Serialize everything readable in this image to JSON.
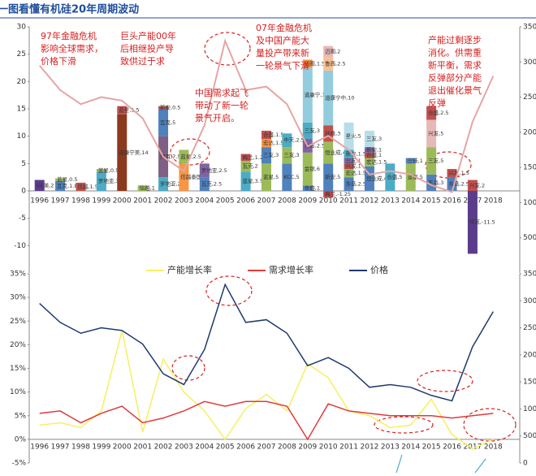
{
  "title": "一图看懂有机硅20年周期波动",
  "chart_data": [
    {
      "type": "stacked-bar",
      "categories": [
        "1996",
        "1997",
        "1998",
        "1999",
        "2000",
        "2001",
        "2002",
        "2003",
        "2004",
        "2005",
        "2006",
        "2007",
        "2008",
        "2009",
        "2010",
        "2011",
        "2012",
        "2013",
        "2014",
        "2015",
        "2016",
        "2017",
        "2018"
      ],
      "ylim": [
        -15,
        30
      ],
      "yticks": [
        -10,
        -5,
        0,
        5,
        10,
        15,
        20,
        25,
        30
      ],
      "y2lim": [
        0,
        35000
      ],
      "y2ticks": [
        5000,
        10000,
        15000,
        20000,
        25000,
        30000,
        35000
      ],
      "segments": [
        [
          {
            "value": 2,
            "value_label": "GE美,2",
            "color": "#5b3c8c"
          }
        ],
        [
          {
            "value": 1.8,
            "value_label": "瓦克,1.8",
            "color": "#4f81bd"
          },
          {
            "value": 0.5,
            "value_label": "蓝星,0.5",
            "color": "#9bbb59"
          }
        ],
        [
          {
            "value": 1.5,
            "value_label": "信越,1.5",
            "color": "#c0504d"
          }
        ],
        [
          {
            "value": 3.5,
            "value_label": "罗地亚,3.5",
            "color": "#4bacc6"
          },
          {
            "value": 0.5,
            "value_label": "蓝星,0.5",
            "color": "#9bbb59"
          }
        ],
        [
          {
            "value": 14,
            "value_label": "道康宁美,14",
            "color": "#8b3a1e"
          },
          {
            "value": 1.5,
            "value_label": "蓝星,1.5",
            "color": "#c0504d"
          }
        ],
        [
          {
            "value": 1,
            "value_label": "信越,1",
            "color": "#9bbb59"
          }
        ],
        [
          {
            "value": 2.5,
            "value_label": "罗地亚,2.5",
            "color": "#4bacc6"
          },
          {
            "value": 7.5,
            "value_label": "拜耳,7.5",
            "color": "#7f6084"
          },
          {
            "value": 5,
            "value_label": "瓦克,5",
            "color": "#4f81bd"
          },
          {
            "value": 0.5,
            "value_label": "新安,0.5",
            "color": "#c0504d"
          }
        ],
        [
          {
            "value": 5,
            "value_label": "信越泰国,5",
            "color": "#f79646"
          },
          {
            "value": 2.5,
            "value_label": "蓝星,2.5",
            "color": "#9bbb59"
          }
        ],
        [
          {
            "value": 2.5,
            "value_label": "瓦克,2.5",
            "color": "#4f81bd"
          },
          {
            "value": 2.5,
            "value_label": "罗地亚,2.5",
            "color": "#8064a2"
          }
        ],
        [],
        [
          {
            "value": 3.5,
            "value_label": "蓝星,3.5",
            "color": "#4bacc6"
          },
          {
            "value": 2,
            "value_label": "瓦克,2",
            "color": "#9bbb59"
          },
          {
            "value": 1.25,
            "value_label": "梅兰,1.25",
            "color": "#c0504d"
          }
        ],
        [
          {
            "value": 5,
            "value_label": "蓝星,5",
            "color": "#9bbb59"
          },
          {
            "value": 3,
            "value_label": "三友,3",
            "color": "#4f81bd"
          },
          {
            "value": 1.5,
            "value_label": "宏达,1.5",
            "color": "#f79646"
          },
          {
            "value": 1.5,
            "value_label": "合盛,1.5",
            "color": "#c0504d"
          }
        ],
        [
          {
            "value": 5,
            "value_label": "KCC,5",
            "color": "#4f81bd"
          },
          {
            "value": 3,
            "value_label": "三友,3",
            "color": "#9bbb59"
          },
          {
            "value": 2.5,
            "value_label": "中天,2.5",
            "color": "#4bacc6"
          }
        ],
        [
          {
            "value": 1,
            "value_label": "合盛,1",
            "color": "#4f81bd"
          },
          {
            "value": 6,
            "value_label": "金银,6",
            "color": "#9bbb59"
          },
          {
            "value": 2.5,
            "value_label": "东岳,2.5",
            "color": "#8064a2"
          },
          {
            "value": 3,
            "value_label": "三友,3",
            "color": "#4bacc6"
          },
          {
            "value": 10,
            "value_label": "道康宁,10",
            "color": "#93cddd"
          },
          {
            "value": 1.5,
            "value_label": "迈图,1.5",
            "color": "#f79646"
          }
        ],
        [
          {
            "value": 5,
            "value_label": "新安,5",
            "color": "#4f81bd"
          },
          {
            "value": 4,
            "value_label": "恒业成,4",
            "color": "#9bbb59"
          },
          {
            "value": 3,
            "value_label": "硅峰,3",
            "color": "#c0504d"
          },
          {
            "value": 10,
            "value_label": "道康宁中,10",
            "color": "#93cddd"
          },
          {
            "value": 2.5,
            "value_label": "鲁西,2.5",
            "color": "#fac090"
          },
          {
            "value": 2,
            "value_label": "迈图,2",
            "color": "#e6b9b8"
          },
          {
            "value": -1.25,
            "value_label": "梅兰,-1.25",
            "color": "#c0504d"
          }
        ],
        [
          {
            "value": 2.5,
            "value_label": "东岳,2.5",
            "color": "#4f81bd"
          },
          {
            "value": 1.5,
            "value_label": "宏达,1.5",
            "color": "#9bbb59"
          },
          {
            "value": 1,
            "value_label": "兴发,1",
            "color": "#c0504d"
          },
          {
            "value": 1,
            "value_label": "三友,1",
            "color": "#8064a2"
          },
          {
            "value": 1.5,
            "value_label": "新安,1.5",
            "color": "#4bacc6"
          },
          {
            "value": 5,
            "value_label": "星火,5",
            "color": "#b7dee8"
          }
        ],
        [
          {
            "value": 4.5,
            "value_label": "恒业成,4.5",
            "color": "#4f81bd"
          },
          {
            "value": 1.5,
            "value_label": "宏达,1.5",
            "color": "#9bbb59"
          },
          {
            "value": 1,
            "value_label": "合盛,1",
            "color": "#c0504d"
          },
          {
            "value": 1,
            "value_label": "新安,1",
            "color": "#8064a2"
          },
          {
            "value": 3,
            "value_label": "三友,3",
            "color": "#b7dee8"
          }
        ],
        [
          {
            "value": 5,
            "value_label": "合盛,5",
            "color": "#4bacc6"
          }
        ],
        [
          {
            "value": 5,
            "value_label": "蓝星,5",
            "color": "#9bbb59"
          },
          {
            "value": 1,
            "value_label": "三佳,1",
            "color": "#4f81bd"
          }
        ],
        [
          {
            "value": 3,
            "value_label": "东岳,3",
            "color": "#4f81bd"
          },
          {
            "value": 5,
            "value_label": "三友,5",
            "color": "#9bbb59"
          },
          {
            "value": 5,
            "value_label": "兴发,5",
            "color": "#e6b9b8"
          },
          {
            "value": 2.5,
            "value_label": "合盛,2.5",
            "color": "#c0504d"
          }
        ],
        [
          {
            "value": 2.5,
            "value_label": "东岳,2.5",
            "color": "#4f81bd"
          },
          {
            "value": 1.5,
            "value_label": "兴发,1.5",
            "color": "#c0504d"
          }
        ],
        [
          {
            "value": 2,
            "value_label": "兴发,2",
            "color": "#c0504d"
          },
          {
            "value": -11.5,
            "value_label": "拜耳,-11.5",
            "color": "#5b3c8c"
          }
        ],
        []
      ],
      "price_color": "#e6a5a5",
      "annotations": [
        [
          "97年金融危机",
          "影响全球需求，",
          "价格下滑"
        ],
        [
          "巨头产能00年",
          "后相继投产导",
          "致供过于求"
        ],
        [
          "中国需求起飞",
          "带动了新一轮",
          "景气开启。"
        ],
        [
          "07年金融危机",
          "及中国产能大",
          "量投产带来新",
          "一轮景气下滑"
        ],
        [
          "产能过剩逐步",
          "消化。供需重",
          "新平衡，需求",
          "反弹部分产能",
          "退出催化景气",
          "反弹"
        ]
      ]
    },
    {
      "type": "line",
      "categories": [
        "1996",
        "1997",
        "1998",
        "1999",
        "2000",
        "2001",
        "2002",
        "2003",
        "2004",
        "2005",
        "2006",
        "2007",
        "2008",
        "2009",
        "2010",
        "2011",
        "2012",
        "2013",
        "2014",
        "2015",
        "2016",
        "2017",
        "2018"
      ],
      "ylim": [
        -5,
        35
      ],
      "yticks": [
        {
          "value": -5,
          "label": "-5%"
        },
        {
          "value": 0,
          "label": "0%"
        },
        {
          "value": 5,
          "label": "5%"
        },
        {
          "value": 10,
          "label": "10%"
        },
        {
          "value": 15,
          "label": "15%"
        },
        {
          "value": 20,
          "label": "20%"
        },
        {
          "value": 25,
          "label": "25%"
        },
        {
          "value": 30,
          "label": "30%"
        },
        {
          "value": 35,
          "label": "35%"
        }
      ],
      "y2lim": [
        0,
        35000
      ],
      "y2ticks": [
        0,
        5000,
        10000,
        15000,
        20000,
        25000,
        30000,
        35000
      ],
      "series": [
        {
          "name": "产能增长率",
          "color": "#f5f060",
          "values": [
            3,
            3.5,
            2.5,
            6,
            23,
            1.5,
            17,
            10,
            6,
            0,
            6.5,
            9.5,
            6,
            16,
            13,
            6,
            5,
            2.5,
            3,
            8.5,
            1,
            -2,
            0
          ]
        },
        {
          "name": "需求增长率",
          "color": "#e03a3a",
          "values": [
            5.5,
            6,
            3.5,
            5.5,
            7,
            3.5,
            4.5,
            6,
            8,
            7,
            8,
            8,
            7,
            0,
            7.5,
            6,
            5.5,
            5,
            5,
            5,
            4.5,
            5,
            5.5
          ]
        },
        {
          "name": "价格",
          "color": "#1f3a70",
          "axis": "y2",
          "values": [
            29500,
            26000,
            24000,
            25000,
            24500,
            22000,
            16500,
            14500,
            21000,
            33000,
            26000,
            26500,
            24000,
            18000,
            19500,
            17500,
            14000,
            14500,
            14000,
            12500,
            11500,
            21500,
            28000
          ]
        }
      ]
    }
  ]
}
